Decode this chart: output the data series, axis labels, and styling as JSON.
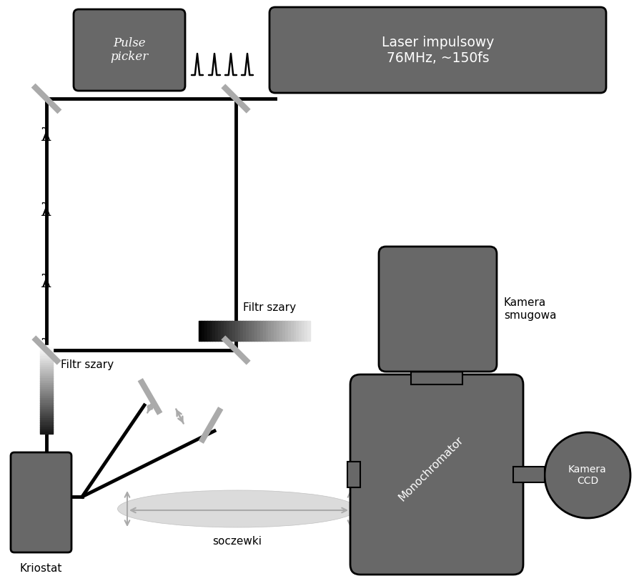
{
  "bg_color": "#ffffff",
  "dark_gray": "#686868",
  "black": "#000000",
  "mirror_color": "#aaaaaa",
  "fig_width": 8.95,
  "fig_height": 8.13,
  "dpi": 100,
  "pulse_picker_label": "Pulse\npicker",
  "laser_label": "Laser impulsowy\n76MHz, ~150fs",
  "filtr_szary_horiz": "Filtr szary",
  "filtr_szary_vert": "Filtr szary",
  "soczewki_label": "soczewki",
  "monochromator_label": "Monochromator",
  "kamera_smugowa_label": "Kamera\nsmugowa",
  "kamera_ccd_label": "Kamera\nCCD",
  "kriostat_label": "Kriostat"
}
